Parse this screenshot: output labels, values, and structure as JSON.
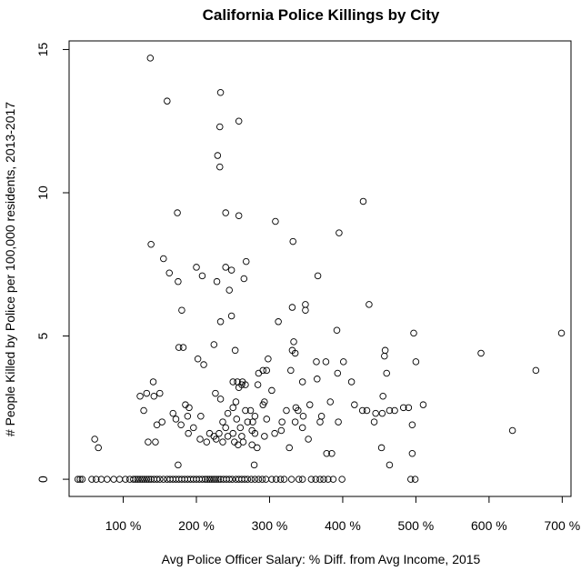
{
  "chart_data": {
    "type": "scatter",
    "title": "California Police Killings by City",
    "xlabel": "Avg Police Officer Salary: % Diff. from Avg Income, 2015",
    "ylabel": "# People Killed by Police per 100,000 residents, 2013-2017",
    "xlim": [
      26,
      712
    ],
    "ylim": [
      -0.6,
      15.3
    ],
    "x_ticks": [
      100,
      200,
      300,
      400,
      500,
      600,
      700
    ],
    "x_tick_labels": [
      "100 %",
      "200 %",
      "300 %",
      "400 %",
      "500 %",
      "600 %",
      "700 %"
    ],
    "y_ticks": [
      0,
      5,
      10,
      15
    ],
    "y_tick_labels": [
      "0",
      "5",
      "10",
      "15"
    ],
    "grid": false,
    "legend": "none",
    "points": [
      [
        137,
        14.7
      ],
      [
        233,
        13.5
      ],
      [
        160,
        13.2
      ],
      [
        258,
        12.5
      ],
      [
        232,
        12.3
      ],
      [
        229,
        11.3
      ],
      [
        232,
        10.9
      ],
      [
        428,
        9.7
      ],
      [
        308,
        9.0
      ],
      [
        174,
        9.3
      ],
      [
        240,
        9.3
      ],
      [
        258,
        9.2
      ],
      [
        395,
        8.6
      ],
      [
        332,
        8.3
      ],
      [
        138,
        8.2
      ],
      [
        155,
        7.7
      ],
      [
        268,
        7.6
      ],
      [
        163,
        7.2
      ],
      [
        200,
        7.4
      ],
      [
        240,
        7.4
      ],
      [
        248,
        7.3
      ],
      [
        208,
        7.1
      ],
      [
        175,
        6.9
      ],
      [
        228,
        6.9
      ],
      [
        265,
        7.0
      ],
      [
        366,
        7.1
      ],
      [
        245,
        6.6
      ],
      [
        436,
        6.1
      ],
      [
        349,
        6.1
      ],
      [
        331,
        6.0
      ],
      [
        349,
        5.9
      ],
      [
        180,
        5.9
      ],
      [
        248,
        5.7
      ],
      [
        233,
        5.5
      ],
      [
        312,
        5.5
      ],
      [
        392,
        5.2
      ],
      [
        497,
        5.1
      ],
      [
        699,
        5.1
      ],
      [
        333,
        4.8
      ],
      [
        176,
        4.6
      ],
      [
        182,
        4.6
      ],
      [
        224,
        4.7
      ],
      [
        253,
        4.5
      ],
      [
        331,
        4.5
      ],
      [
        335,
        4.4
      ],
      [
        458,
        4.5
      ],
      [
        589,
        4.4
      ],
      [
        457,
        4.3
      ],
      [
        202,
        4.2
      ],
      [
        210,
        4.0
      ],
      [
        298,
        4.2
      ],
      [
        364,
        4.1
      ],
      [
        377,
        4.1
      ],
      [
        401,
        4.1
      ],
      [
        500,
        4.1
      ],
      [
        291,
        3.8
      ],
      [
        285,
        3.7
      ],
      [
        296,
        3.8
      ],
      [
        329,
        3.8
      ],
      [
        393,
        3.7
      ],
      [
        460,
        3.7
      ],
      [
        664,
        3.8
      ],
      [
        141,
        3.4
      ],
      [
        250,
        3.4
      ],
      [
        256,
        3.4
      ],
      [
        263,
        3.4
      ],
      [
        267,
        3.3
      ],
      [
        345,
        3.4
      ],
      [
        365,
        3.5
      ],
      [
        412,
        3.4
      ],
      [
        132,
        3.0
      ],
      [
        150,
        3.0
      ],
      [
        226,
        3.0
      ],
      [
        258,
        3.2
      ],
      [
        262,
        3.3
      ],
      [
        284,
        3.3
      ],
      [
        303,
        3.1
      ],
      [
        142,
        2.9
      ],
      [
        123,
        2.9
      ],
      [
        233,
        2.8
      ],
      [
        254,
        2.7
      ],
      [
        293,
        2.7
      ],
      [
        291,
        2.6
      ],
      [
        355,
        2.6
      ],
      [
        383,
        2.7
      ],
      [
        416,
        2.6
      ],
      [
        433,
        2.4
      ],
      [
        455,
        2.9
      ],
      [
        471,
        2.4
      ],
      [
        483,
        2.5
      ],
      [
        490,
        2.5
      ],
      [
        510,
        2.6
      ],
      [
        128,
        2.4
      ],
      [
        168,
        2.3
      ],
      [
        185,
        2.6
      ],
      [
        190,
        2.5
      ],
      [
        243,
        2.3
      ],
      [
        250,
        2.5
      ],
      [
        267,
        2.4
      ],
      [
        274,
        2.4
      ],
      [
        280,
        2.2
      ],
      [
        323,
        2.4
      ],
      [
        336,
        2.5
      ],
      [
        339,
        2.4
      ],
      [
        346,
        2.2
      ],
      [
        427,
        2.4
      ],
      [
        445,
        2.3
      ],
      [
        454,
        2.3
      ],
      [
        464,
        2.4
      ],
      [
        172,
        2.1
      ],
      [
        179,
        1.9
      ],
      [
        188,
        2.2
      ],
      [
        206,
        2.2
      ],
      [
        236,
        2.0
      ],
      [
        255,
        2.1
      ],
      [
        260,
        1.8
      ],
      [
        270,
        2.0
      ],
      [
        277,
        2.0
      ],
      [
        296,
        2.1
      ],
      [
        317,
        2.0
      ],
      [
        335,
        2.0
      ],
      [
        369,
        2.0
      ],
      [
        371,
        2.2
      ],
      [
        394,
        2.0
      ],
      [
        443,
        2.0
      ],
      [
        495,
        1.9
      ],
      [
        146,
        1.9
      ],
      [
        153,
        2.0
      ],
      [
        189,
        1.6
      ],
      [
        196,
        1.8
      ],
      [
        218,
        1.6
      ],
      [
        224,
        1.5
      ],
      [
        231,
        1.6
      ],
      [
        240,
        1.8
      ],
      [
        243,
        1.5
      ],
      [
        250,
        1.6
      ],
      [
        262,
        1.5
      ],
      [
        276,
        1.7
      ],
      [
        280,
        1.6
      ],
      [
        293,
        1.5
      ],
      [
        307,
        1.6
      ],
      [
        316,
        1.7
      ],
      [
        345,
        1.8
      ],
      [
        632,
        1.7
      ],
      [
        61,
        1.4
      ],
      [
        66,
        1.1
      ],
      [
        134,
        1.3
      ],
      [
        144,
        1.3
      ],
      [
        205,
        1.4
      ],
      [
        214,
        1.3
      ],
      [
        227,
        1.4
      ],
      [
        236,
        1.3
      ],
      [
        252,
        1.3
      ],
      [
        257,
        1.2
      ],
      [
        264,
        1.3
      ],
      [
        276,
        1.2
      ],
      [
        283,
        1.1
      ],
      [
        327,
        1.1
      ],
      [
        353,
        1.4
      ],
      [
        453,
        1.1
      ],
      [
        378,
        0.9
      ],
      [
        385,
        0.9
      ],
      [
        495,
        0.9
      ],
      [
        175,
        0.5
      ],
      [
        279,
        0.5
      ],
      [
        464,
        0.5
      ],
      [
        38,
        0
      ],
      [
        41,
        0
      ],
      [
        44,
        0
      ],
      [
        57,
        0
      ],
      [
        63,
        0
      ],
      [
        70,
        0
      ],
      [
        78,
        0
      ],
      [
        87,
        0
      ],
      [
        95,
        0
      ],
      [
        103,
        0
      ],
      [
        109,
        0
      ],
      [
        114,
        0
      ],
      [
        117,
        0
      ],
      [
        120,
        0
      ],
      [
        123,
        0
      ],
      [
        126,
        0
      ],
      [
        129,
        0
      ],
      [
        132,
        0
      ],
      [
        135,
        0
      ],
      [
        138,
        0
      ],
      [
        142,
        0
      ],
      [
        146,
        0
      ],
      [
        150,
        0
      ],
      [
        155,
        0
      ],
      [
        160,
        0
      ],
      [
        164,
        0
      ],
      [
        168,
        0
      ],
      [
        172,
        0
      ],
      [
        176,
        0
      ],
      [
        180,
        0
      ],
      [
        184,
        0
      ],
      [
        188,
        0
      ],
      [
        192,
        0
      ],
      [
        196,
        0
      ],
      [
        200,
        0
      ],
      [
        204,
        0
      ],
      [
        208,
        0
      ],
      [
        212,
        0
      ],
      [
        215,
        0
      ],
      [
        218,
        0
      ],
      [
        221,
        0
      ],
      [
        224,
        0
      ],
      [
        227,
        0
      ],
      [
        230,
        0
      ],
      [
        233,
        0
      ],
      [
        237,
        0
      ],
      [
        241,
        0
      ],
      [
        245,
        0
      ],
      [
        249,
        0
      ],
      [
        254,
        0
      ],
      [
        258,
        0
      ],
      [
        262,
        0
      ],
      [
        266,
        0
      ],
      [
        270,
        0
      ],
      [
        275,
        0
      ],
      [
        280,
        0
      ],
      [
        285,
        0
      ],
      [
        290,
        0
      ],
      [
        295,
        0
      ],
      [
        303,
        0
      ],
      [
        309,
        0
      ],
      [
        315,
        0
      ],
      [
        320,
        0
      ],
      [
        330,
        0
      ],
      [
        340,
        0
      ],
      [
        345,
        0
      ],
      [
        357,
        0
      ],
      [
        363,
        0
      ],
      [
        369,
        0
      ],
      [
        374,
        0
      ],
      [
        380,
        0
      ],
      [
        387,
        0
      ],
      [
        399,
        0
      ],
      [
        493,
        0
      ],
      [
        499,
        0
      ]
    ]
  }
}
